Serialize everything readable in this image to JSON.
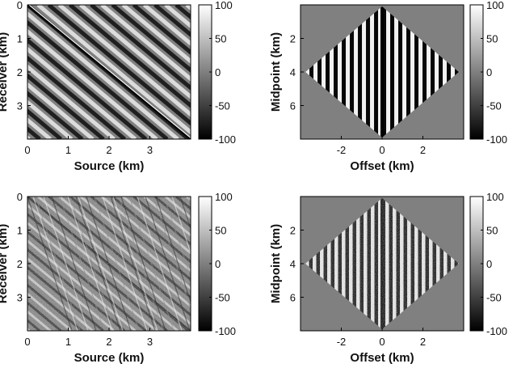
{
  "figure": {
    "colormap": "gray",
    "colormap_stops": [
      "#000000",
      "#ffffff"
    ],
    "background": "#808080"
  },
  "chart_data": [
    {
      "type": "heatmap",
      "panel": "top-left",
      "xlabel": "Source (km)",
      "ylabel": "Receiver (km)",
      "xticks": [
        "0",
        "1",
        "2",
        "3"
      ],
      "yticks": [
        "0",
        "1",
        "2",
        "3"
      ],
      "xlim": [
        0,
        4
      ],
      "ylim": [
        4,
        0
      ],
      "clim": [
        -100,
        100
      ],
      "colorbar_ticks": [
        "100",
        "50",
        "0",
        "-50",
        "-100"
      ],
      "pattern": "smooth diagonal stripes with a bright diagonal line",
      "values_visible": false
    },
    {
      "type": "heatmap",
      "panel": "top-right",
      "xlabel": "Offset (km)",
      "ylabel": "Midpoint (km)",
      "xticks": [
        "-2",
        "0",
        "2"
      ],
      "yticks": [
        "2",
        "4",
        "6"
      ],
      "xlim": [
        -4,
        4
      ],
      "ylim": [
        8,
        0
      ],
      "clim": [
        -100,
        100
      ],
      "colorbar_ticks": [
        "100",
        "50",
        "0",
        "-50",
        "-100"
      ],
      "pattern": "diamond support with vertical stripes",
      "values_visible": false
    },
    {
      "type": "heatmap",
      "panel": "bottom-left",
      "xlabel": "Source (km)",
      "ylabel": "Receiver (km)",
      "xticks": [
        "0",
        "1",
        "2",
        "3"
      ],
      "yticks": [
        "0",
        "1",
        "2",
        "3"
      ],
      "xlim": [
        0,
        4
      ],
      "ylim": [
        4,
        0
      ],
      "clim": [
        -100,
        100
      ],
      "colorbar_ticks": [
        "100",
        "50",
        "0",
        "-50",
        "-100"
      ],
      "pattern": "noisy diagonal stripes",
      "values_visible": false
    },
    {
      "type": "heatmap",
      "panel": "bottom-right",
      "xlabel": "Offset (km)",
      "ylabel": "Midpoint (km)",
      "xticks": [
        "-2",
        "0",
        "2"
      ],
      "yticks": [
        "2",
        "4",
        "6"
      ],
      "xlim": [
        -4,
        4
      ],
      "ylim": [
        8,
        0
      ],
      "clim": [
        -100,
        100
      ],
      "colorbar_ticks": [
        "100",
        "50",
        "0",
        "-50",
        "-100"
      ],
      "pattern": "diamond support with noisy vertical stripes",
      "values_visible": false
    }
  ]
}
